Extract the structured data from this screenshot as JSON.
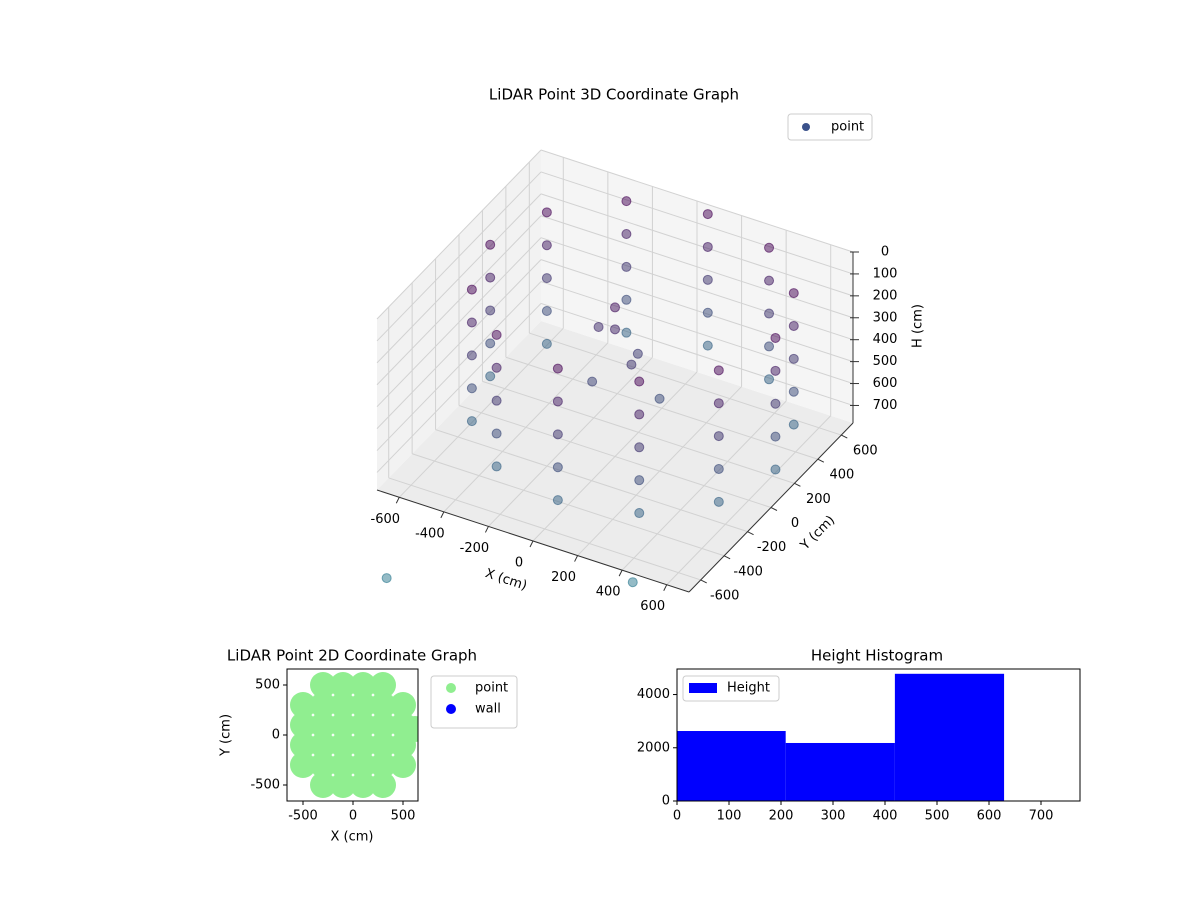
{
  "chart_data": [
    {
      "type": "scatter3d",
      "title": "LiDAR Point 3D Coordinate Graph",
      "xlabel": "X (cm)",
      "ylabel": "Y (cm)",
      "zlabel": "H (cm)",
      "xlim": [
        -700,
        700
      ],
      "ylim": [
        -700,
        700
      ],
      "zlim": [
        780,
        0
      ],
      "xticks": [
        -600,
        -400,
        -200,
        0,
        200,
        400,
        600
      ],
      "yticks": [
        -600,
        -400,
        -200,
        0,
        200,
        400,
        600
      ],
      "zticks": [
        0,
        100,
        200,
        300,
        400,
        500,
        600,
        700
      ],
      "grid": true,
      "legend": "upper right",
      "series": [
        {
          "name": "point",
          "color": "#3b528b",
          "cmap": [
            "#440154",
            "#2a788e"
          ],
          "x": [
            720,
            720,
            720,
            720,
            720,
            634,
            634,
            634,
            634,
            634,
            400,
            400,
            400,
            400,
            400,
            80,
            80,
            80,
            80,
            80,
            -240,
            -240,
            -240,
            -240,
            -240,
            -474,
            -474,
            -474,
            -474,
            -474,
            -560,
            -560,
            -560,
            -560,
            -560,
            -474,
            -474,
            -474,
            -474,
            -474,
            -240,
            -240,
            -240,
            -240,
            -240,
            80,
            80,
            80,
            80,
            80,
            400,
            400,
            400,
            400,
            400,
            634,
            634,
            634,
            634,
            634,
            0,
            0,
            -100,
            100,
            50,
            -50,
            200,
            -376,
            476
          ],
          "y": [
            0,
            0,
            0,
            0,
            0,
            320,
            320,
            320,
            320,
            320,
            554,
            554,
            554,
            554,
            554,
            640,
            640,
            640,
            640,
            640,
            554,
            554,
            554,
            554,
            554,
            320,
            320,
            320,
            320,
            320,
            0,
            0,
            0,
            0,
            0,
            -320,
            -320,
            -320,
            -320,
            -320,
            -554,
            -554,
            -554,
            -554,
            -554,
            -640,
            -640,
            -640,
            -640,
            -640,
            -554,
            -554,
            -554,
            -554,
            -554,
            -320,
            -320,
            -320,
            -320,
            -320,
            0,
            0,
            50,
            -50,
            100,
            -100,
            0,
            -1234,
            -754
          ],
          "z": [
            0,
            150,
            300,
            450,
            600,
            0,
            150,
            300,
            450,
            600,
            0,
            150,
            300,
            450,
            600,
            0,
            150,
            300,
            450,
            600,
            0,
            150,
            300,
            450,
            600,
            0,
            150,
            300,
            450,
            600,
            0,
            150,
            300,
            450,
            600,
            0,
            150,
            300,
            450,
            600,
            0,
            150,
            300,
            450,
            600,
            0,
            150,
            300,
            450,
            600,
            0,
            150,
            300,
            450,
            600,
            0,
            150,
            300,
            450,
            600,
            100,
            200,
            250,
            300,
            350,
            400,
            450,
            780,
            780
          ]
        }
      ]
    },
    {
      "type": "scatter",
      "title": "LiDAR Point 2D Coordinate Graph",
      "xlabel": "X (cm)",
      "ylabel": "Y (cm)",
      "xlim": [
        -660,
        650
      ],
      "ylim": [
        -660,
        660
      ],
      "xticks": [
        -500,
        0,
        500
      ],
      "yticks": [
        -500,
        0,
        500
      ],
      "legend": "outside right",
      "series": [
        {
          "name": "point",
          "color": "#90ee90",
          "x": [
            -300,
            -100,
            100,
            300,
            -500,
            -300,
            -100,
            100,
            300,
            500,
            -500,
            -300,
            -100,
            100,
            300,
            500,
            -500,
            -300,
            -100,
            100,
            300,
            500,
            -500,
            -300,
            -100,
            100,
            300,
            500,
            -300,
            -100,
            100,
            300,
            620
          ],
          "y": [
            500,
            500,
            500,
            500,
            300,
            300,
            300,
            300,
            300,
            300,
            100,
            100,
            100,
            100,
            100,
            100,
            -100,
            -100,
            -100,
            -100,
            -100,
            -100,
            -300,
            -300,
            -300,
            -300,
            -300,
            -300,
            -500,
            -500,
            -500,
            -500,
            60
          ]
        },
        {
          "name": "wall",
          "color": "#0000ff",
          "x": [],
          "y": []
        }
      ]
    },
    {
      "type": "histogram",
      "title": "Height Histogram",
      "xlim": [
        0,
        775
      ],
      "ylim": [
        0,
        4960
      ],
      "xticks": [
        0,
        100,
        200,
        300,
        400,
        500,
        600,
        700
      ],
      "yticks": [
        0,
        2000,
        4000
      ],
      "legend": "upper left",
      "series": [
        {
          "name": "Height",
          "color": "#0000ff",
          "bins": [
            0,
            209,
            419,
            629
          ],
          "values": [
            2630,
            2180,
            4780
          ]
        }
      ]
    }
  ]
}
